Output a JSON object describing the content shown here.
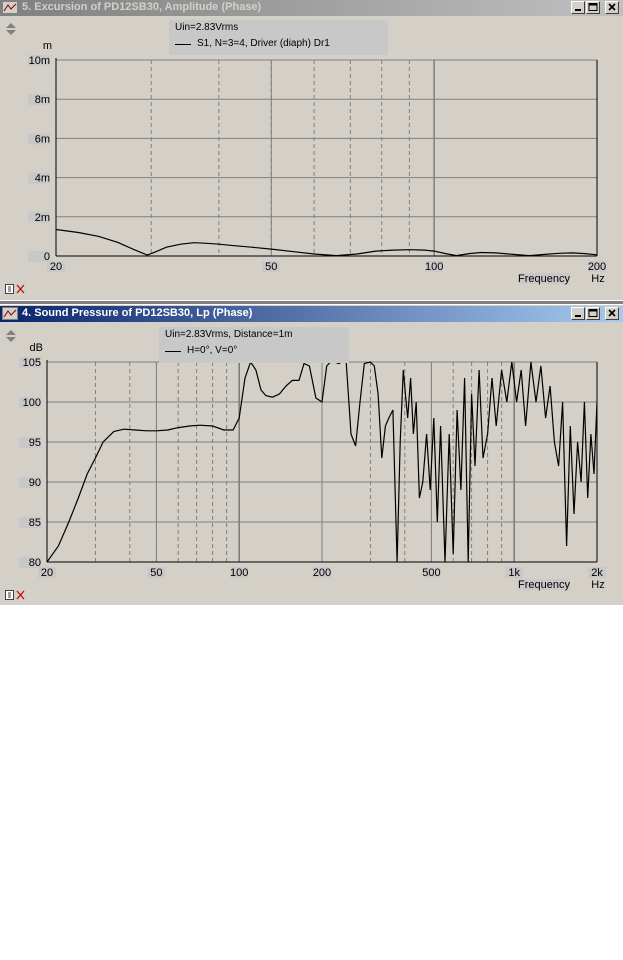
{
  "windows": [
    {
      "title": "5. Excursion of PD12SB30, Amplitude (Phase)",
      "legend_line1": "Uin=2.83Vrms",
      "legend_line2": "S1, N=3=4, Driver (diaph) Dr1"
    },
    {
      "title": "4. Sound Pressure of PD12SB30, Lp (Phase)",
      "legend_line1": "Uin=2.83Vrms, Distance=1m",
      "legend_line2": "H=0°, V=0°"
    }
  ],
  "chart_data": [
    {
      "type": "line",
      "title": "5. Excursion of PD12SB30, Amplitude (Phase)",
      "xlabel": "Frequency",
      "xunit": "Hz",
      "ylabel": "m",
      "xscale": "log",
      "xlim": [
        20,
        200
      ],
      "ylim": [
        0,
        0.01
      ],
      "xticks": [
        20,
        50,
        100,
        200
      ],
      "xtick_labels": [
        "20",
        "50",
        "100",
        "200"
      ],
      "yticks": [
        0,
        0.002,
        0.004,
        0.006,
        0.008,
        0.01
      ],
      "ytick_labels": [
        "0",
        "2m",
        "4m",
        "6m",
        "8m",
        "10m"
      ],
      "grid": true,
      "legend": [
        "S1, N=3=4, Driver (diaph) Dr1"
      ],
      "series": [
        {
          "x": [
            20,
            22,
            24,
            26,
            28,
            29.5,
            30.5,
            32,
            34,
            36,
            38,
            40,
            43,
            46,
            50,
            55,
            60,
            66,
            72,
            78,
            84,
            90,
            96,
            100,
            105,
            110,
            116,
            122,
            130,
            140,
            150,
            160,
            170,
            180,
            190,
            200
          ],
          "y": [
            0.00135,
            0.0012,
            0.001,
            0.0007,
            0.0003,
            5e-05,
            0.0002,
            0.00045,
            0.0006,
            0.00068,
            0.00065,
            0.0006,
            0.00052,
            0.00045,
            0.00035,
            0.00022,
            0.0001,
            2e-05,
            0.0001,
            0.00025,
            0.0003,
            0.00032,
            0.0003,
            0.00025,
            0.00012,
            2e-05,
            0.00012,
            0.00018,
            0.00016,
            8e-05,
            2e-05,
            8e-05,
            0.00014,
            0.00016,
            0.00012,
            6e-05
          ]
        }
      ]
    },
    {
      "type": "line",
      "title": "4. Sound Pressure of PD12SB30, Lp (Phase)",
      "xlabel": "Frequency",
      "xunit": "Hz",
      "ylabel": "dB",
      "xscale": "log",
      "xlim": [
        20,
        2000
      ],
      "ylim": [
        80,
        105
      ],
      "xticks": [
        20,
        50,
        100,
        200,
        500,
        1000,
        2000
      ],
      "xtick_labels": [
        "20",
        "50",
        "100",
        "200",
        "500",
        "1k",
        "2k"
      ],
      "yticks": [
        80,
        85,
        90,
        95,
        100,
        105
      ],
      "ytick_labels": [
        "80",
        "85",
        "90",
        "95",
        "100",
        "105"
      ],
      "grid": true,
      "legend": [
        "H=0°, V=0°"
      ],
      "series": [
        {
          "x": [
            20,
            22,
            24,
            26,
            28,
            30,
            32,
            35,
            38,
            42,
            46,
            50,
            55,
            60,
            66,
            72,
            80,
            88,
            95,
            100,
            105,
            110,
            115,
            120,
            125,
            132,
            140,
            148,
            156,
            165,
            172,
            180,
            190,
            200,
            208,
            215,
            222,
            230,
            236,
            245,
            255,
            265,
            275,
            285,
            300,
            310,
            320,
            330,
            340,
            350,
            362,
            375,
            385,
            395,
            402,
            410,
            420,
            430,
            440,
            452,
            465,
            480,
            495,
            510,
            525,
            540,
            560,
            580,
            600,
            620,
            640,
            660,
            680,
            700,
            720,
            745,
            770,
            800,
            830,
            860,
            900,
            940,
            980,
            1020,
            1060,
            1100,
            1150,
            1200,
            1250,
            1300,
            1350,
            1400,
            1450,
            1500,
            1550,
            1600,
            1650,
            1700,
            1750,
            1800,
            1850,
            1900,
            1950,
            2000
          ],
          "y": [
            80,
            82,
            85,
            88,
            91,
            93,
            95,
            96.3,
            96.6,
            96.5,
            96.4,
            96.4,
            96.5,
            96.8,
            97,
            97.1,
            97,
            96.5,
            96.5,
            98,
            103,
            105,
            104,
            101.5,
            100.8,
            100.6,
            101,
            102,
            102.7,
            102.7,
            104.8,
            104.5,
            100.5,
            100,
            104.5,
            105,
            105,
            104.8,
            105,
            105,
            96,
            94.5,
            100,
            104.8,
            105,
            104.5,
            101,
            93,
            97,
            98,
            99,
            80,
            95,
            104,
            101,
            98,
            103,
            96,
            100,
            88,
            90,
            96,
            89,
            98,
            85,
            97,
            80,
            96,
            81,
            99,
            89,
            103,
            80,
            101,
            92,
            104,
            93,
            96,
            103,
            97,
            104,
            100,
            105,
            100,
            104,
            97,
            105,
            100,
            104.5,
            98,
            102,
            95,
            92,
            100,
            82,
            97,
            86,
            95,
            90,
            100,
            88,
            96,
            91,
            100
          ]
        }
      ]
    }
  ]
}
